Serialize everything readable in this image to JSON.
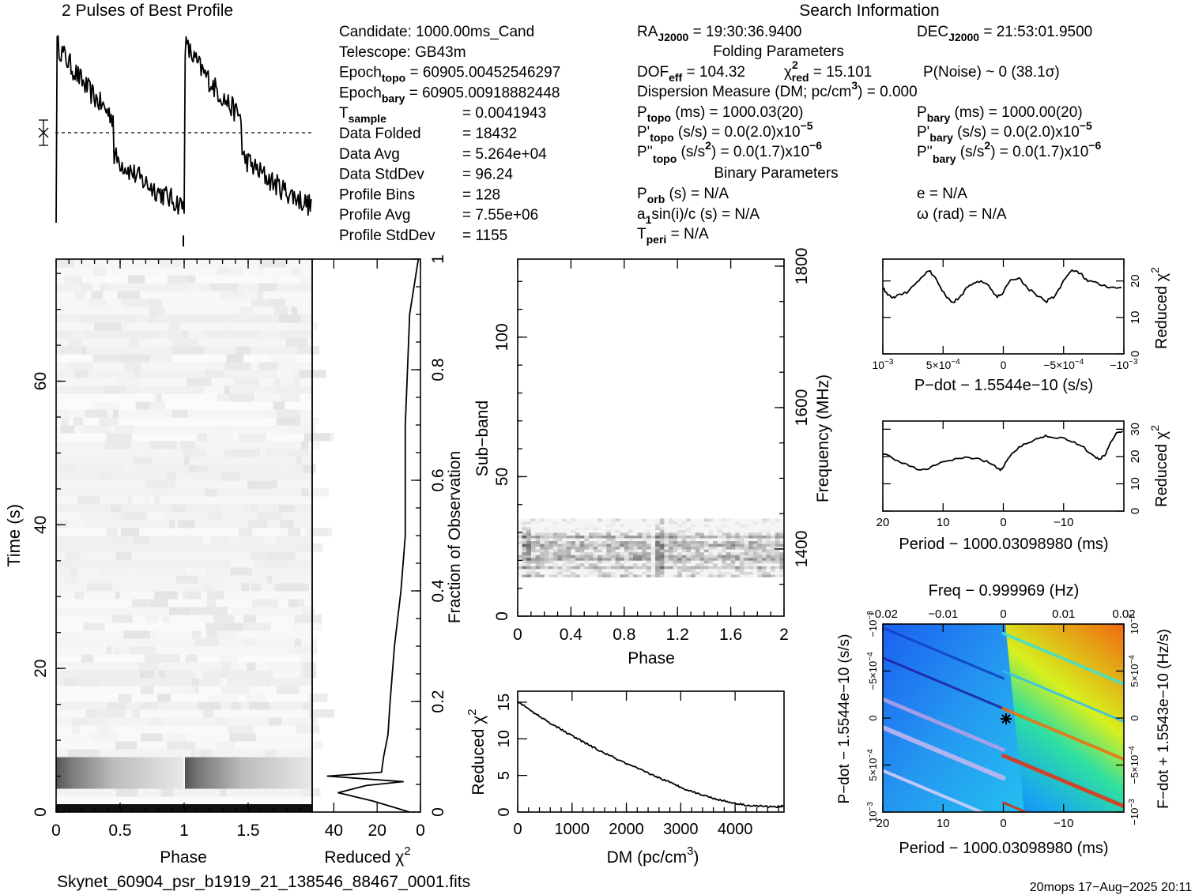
{
  "texts": {
    "profile_title": "2 Pulses of Best Profile",
    "search_title": "Search Information",
    "folding_title": "Folding Parameters",
    "binary_title": "Binary Parameters",
    "filename": "Skynet_60904_psr_b1919_21_138546_88467_0001.fits",
    "footer": "20mops  17−Aug−2025 20:11"
  },
  "info": {
    "left": [
      [
        "Candidate:  1000.00ms_Cand",
        ""
      ],
      [
        "Telescope:   GB43m",
        ""
      ],
      [
        "Epoch",
        "topo",
        " = 60905.00452546297"
      ],
      [
        "Epoch",
        "bary",
        " = 60905.00918882448"
      ],
      [
        "T",
        "sample",
        "",
        "=   0.0041943"
      ],
      [
        "Data Folded",
        "",
        "",
        "=   18432"
      ],
      [
        "Data Avg",
        "",
        "",
        "=   5.264e+04"
      ],
      [
        "Data StdDev",
        "",
        "",
        "=   96.24"
      ],
      [
        "Profile Bins",
        "",
        "",
        "=   128"
      ],
      [
        "Profile Avg",
        "",
        "",
        "=   7.55e+06"
      ],
      [
        "Profile StdDev",
        "",
        "",
        "=   1155"
      ]
    ],
    "ra": "RA",
    "ra_sub": "J2000",
    "ra_val": " = 19:30:36.9400",
    "dec": "DEC",
    "dec_sub": "J2000",
    "dec_val": " = 21:53:01.9500",
    "dof": "DOF",
    "dof_sub": "eff",
    "dof_val": " = 104.32",
    "chi": "χ",
    "chi_sup": "2",
    "chi_sub": "red",
    "chi_val": " = 15.101",
    "pnoise": "P(Noise) ~ 0    (38.1σ)",
    "dm": "Dispersion Measure (DM; pc/cm",
    "dm_sup": "3",
    "dm_val": ") = 0.000",
    "ptopo": "P",
    "ptopo_sub": "topo",
    "ptopo_val": " (ms) =  1000.03(20)",
    "pbary": "P",
    "pbary_sub": "bary",
    "pbary_val": " (ms) =  1000.00(20)",
    "pdtopo": "P'",
    "pdtopo_sub": "topo",
    "pdtopo_val": " (s/s) = 0.0(2.0)x10",
    "pdtopo_exp": "−5",
    "pdbary": "P'",
    "pdbary_sub": "bary",
    "pdbary_val": " (s/s) = 0.0(2.0)x10",
    "pdbary_exp": "−5",
    "pddtopo": "P''",
    "pddtopo_sub": "topo",
    "pddtopo_val": " (s/s",
    "pddtopo_sup": "2",
    "pddtopo_val2": ") = 0.0(1.7)x10",
    "pddtopo_exp": "−6",
    "pddbary": "P''",
    "pddbary_sub": "bary",
    "pddbary_val": " (s/s",
    "pddbary_sup": "2",
    "pddbary_val2": ") = 0.0(1.7)x10",
    "pddbary_exp": "−6",
    "porb": "P",
    "porb_sub": "orb",
    "porb_val": " (s) = N/A",
    "ecc": "e = N/A",
    "asini": "a",
    "asini_sub": "1",
    "asini_val": "sin(i)/c (s) = N/A",
    "omega": "ω (rad) = N/A",
    "tperi": "T",
    "tperi_sub": "peri",
    "tperi_val": " = N/A"
  },
  "axes": {
    "phase": "Phase",
    "time": "Time (s)",
    "redchi": "Reduced χ",
    "redchi_sup": "2",
    "fraction": "Fraction of Observation",
    "subband": "Sub−band",
    "frequency": "Frequency (MHz)",
    "dm": "DM (pc/cm",
    "dm_sup": "3",
    "dm_close": ")",
    "pdot_label": "P−dot − 1.5544e−10 (s/s)",
    "period_label": "Period − 1000.03098980 (ms)",
    "freq_label": "Freq − 0.999969 (Hz)",
    "pdot_left": "P−dot − 1.5544e−10 (s/s)",
    "fdot_right": "F−dot + 1.5543e−10 (Hz/s)"
  },
  "chart_data": [
    {
      "type": "line",
      "name": "profile",
      "title": "2 Pulses of Best Profile",
      "xlabel": "",
      "ylabel": "",
      "pulses": 2,
      "bins_per_pulse": 128,
      "mean_marker": "dotted line with error bar at left"
    },
    {
      "type": "heatmap",
      "name": "time-phase",
      "xlabel": "Phase",
      "ylabel": "Time (s)",
      "xlim": [
        0,
        2
      ],
      "ylim": [
        0,
        77
      ],
      "x_ticks": [
        0,
        0.5,
        1,
        1.5
      ],
      "y_ticks": [
        0,
        20,
        40,
        60
      ]
    },
    {
      "type": "line",
      "name": "time-chi2",
      "xlabel": "Reduced χ2",
      "ylabel": "Fraction of Observation",
      "xlim": [
        50,
        0
      ],
      "ylim": [
        0,
        1
      ],
      "x_ticks": [
        40,
        20,
        0
      ],
      "y_ticks": [
        0,
        0.2,
        0.4,
        0.6,
        0.8,
        1
      ],
      "points": [
        [
          5,
          0
        ],
        [
          22,
          0.02
        ],
        [
          38,
          0.035
        ],
        [
          25,
          0.048
        ],
        [
          8,
          0.055
        ],
        [
          43,
          0.065
        ],
        [
          18,
          0.072
        ],
        [
          17,
          0.1
        ],
        [
          15,
          0.14
        ],
        [
          14,
          0.2
        ],
        [
          12,
          0.3
        ],
        [
          9,
          0.4
        ],
        [
          7,
          0.5
        ],
        [
          7,
          0.6
        ],
        [
          7,
          0.7
        ],
        [
          6,
          0.8
        ],
        [
          5,
          0.9
        ],
        [
          3,
          0.95
        ],
        [
          1,
          1.0
        ]
      ]
    },
    {
      "type": "heatmap",
      "name": "subband-phase",
      "xlabel": "Phase",
      "ylabel": "Sub−band",
      "y2label": "Frequency (MHz)",
      "xlim": [
        0,
        2
      ],
      "ylim": [
        0,
        128
      ],
      "x_ticks": [
        0,
        0.4,
        0.8,
        1.2,
        1.6,
        2
      ],
      "y_ticks": [
        0,
        50,
        100
      ],
      "y2_ticks": [
        1400,
        1600,
        1800
      ],
      "active_subbands": [
        14,
        35
      ]
    },
    {
      "type": "line",
      "name": "dm-chi2",
      "xlabel": "DM (pc/cm3)",
      "ylabel": "Reduced χ2",
      "xlim": [
        0,
        4900
      ],
      "ylim": [
        0,
        16.5
      ],
      "x_ticks": [
        0,
        1000,
        2000,
        3000,
        4000
      ],
      "y_ticks": [
        0,
        5,
        10,
        15
      ],
      "points": [
        [
          0,
          15.1
        ],
        [
          250,
          13.8
        ],
        [
          500,
          12.6
        ],
        [
          750,
          11.5
        ],
        [
          1000,
          10.4
        ],
        [
          1250,
          9.4
        ],
        [
          1500,
          8.4
        ],
        [
          1750,
          7.5
        ],
        [
          2000,
          6.6
        ],
        [
          2250,
          5.8
        ],
        [
          2500,
          5.0
        ],
        [
          2750,
          4.2
        ],
        [
          3000,
          3.4
        ],
        [
          3250,
          2.7
        ],
        [
          3500,
          2.1
        ],
        [
          3750,
          1.6
        ],
        [
          4000,
          1.2
        ],
        [
          4250,
          0.9
        ],
        [
          4500,
          0.8
        ],
        [
          4750,
          0.7
        ],
        [
          4900,
          0.9
        ]
      ]
    },
    {
      "type": "line",
      "name": "pdot-chi2",
      "xlabel": "P−dot − 1.5544e−10 (s/s)",
      "ylabel": "Reduced χ2",
      "xlim": [
        0.001,
        -0.001
      ],
      "ylim": [
        0,
        26
      ],
      "x_ticks": [
        "10−3",
        "5×10−4",
        "0",
        "−5×10−4",
        "−10−3"
      ],
      "y_ticks": [
        0,
        10,
        20
      ],
      "points": [
        [
          0.001,
          18
        ],
        [
          0.00095,
          16
        ],
        [
          0.0009,
          15.5
        ],
        [
          0.0008,
          17
        ],
        [
          0.0007,
          20
        ],
        [
          0.00062,
          23
        ],
        [
          0.00055,
          20
        ],
        [
          0.00048,
          16
        ],
        [
          0.00042,
          14
        ],
        [
          0.00035,
          16
        ],
        [
          0.00028,
          19
        ],
        [
          0.0002,
          20
        ],
        [
          0.00012,
          18.5
        ],
        [
          5e-05,
          15.5
        ],
        [
          0,
          17
        ],
        [
          -6e-05,
          20
        ],
        [
          -0.00013,
          21
        ],
        [
          -0.0002,
          18
        ],
        [
          -0.00028,
          16
        ],
        [
          -0.00036,
          14.5
        ],
        [
          -0.00043,
          16
        ],
        [
          -0.0005,
          20
        ],
        [
          -0.00057,
          23
        ],
        [
          -0.00064,
          22
        ],
        [
          -0.0007,
          20
        ],
        [
          -0.0008,
          19
        ],
        [
          -0.0009,
          18
        ],
        [
          -0.001,
          18
        ]
      ]
    },
    {
      "type": "line",
      "name": "period-chi2",
      "xlabel": "Period − 1000.03098980 (ms)",
      "ylabel": "Reduced χ2",
      "xlim": [
        20,
        -20
      ],
      "ylim": [
        0,
        33
      ],
      "x_ticks": [
        20,
        10,
        0,
        -10
      ],
      "y_ticks": [
        0,
        10,
        20,
        30
      ],
      "points": [
        [
          20,
          21
        ],
        [
          18,
          19
        ],
        [
          16,
          17
        ],
        [
          14,
          15
        ],
        [
          12,
          16
        ],
        [
          10,
          18
        ],
        [
          8,
          19
        ],
        [
          6,
          19.5
        ],
        [
          4,
          19
        ],
        [
          2,
          17.5
        ],
        [
          0.5,
          15
        ],
        [
          0,
          16
        ],
        [
          -1,
          20
        ],
        [
          -3,
          24
        ],
        [
          -5,
          26
        ],
        [
          -7,
          27.5
        ],
        [
          -9,
          27
        ],
        [
          -11,
          26
        ],
        [
          -13,
          24
        ],
        [
          -15,
          20
        ],
        [
          -16,
          19
        ],
        [
          -17,
          21
        ],
        [
          -18,
          26
        ],
        [
          -19,
          29
        ],
        [
          -20,
          29
        ]
      ]
    },
    {
      "type": "heatmap",
      "name": "period-pdot",
      "xlabel": "Period − 1000.03098980 (ms)",
      "ylabel": "P−dot − 1.5544e−10 (s/s)",
      "x2label": "Freq − 0.999969 (Hz)",
      "y2label": "F−dot + 1.5543e−10 (Hz/s)",
      "x_ticks": [
        20,
        10,
        0,
        -10
      ],
      "x2_ticks": [
        "−0.02",
        "−0.01",
        "0",
        "0.01",
        "0.02"
      ],
      "y_ticks": [
        "10−3",
        "5×10−4",
        "0",
        "−5×10−4",
        "−10−3"
      ],
      "y2_ticks": [
        "−10−3",
        "−5×10−4",
        "0",
        "5×10−4",
        "10−3"
      ]
    }
  ]
}
